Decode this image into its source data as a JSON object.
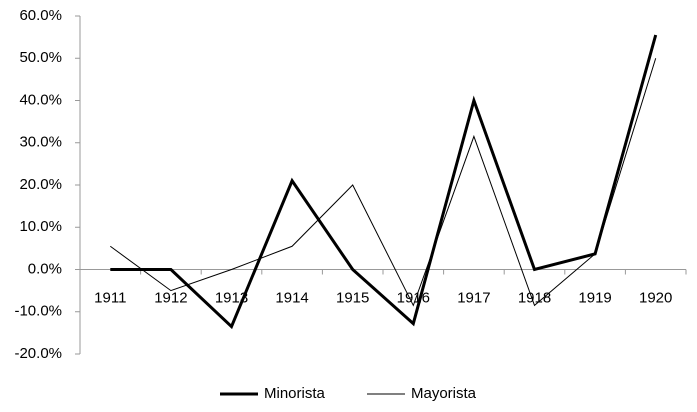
{
  "chart_data": {
    "type": "line",
    "categories": [
      "1911",
      "1912",
      "1913",
      "1914",
      "1915",
      "1916",
      "1917",
      "1918",
      "1919",
      "1920"
    ],
    "series": [
      {
        "name": "Minorista",
        "color": "#000000",
        "width": 3,
        "values": [
          0,
          0,
          -13.5,
          21,
          0,
          -12.8,
          40,
          0,
          3.7,
          55.5
        ]
      },
      {
        "name": "Mayorista",
        "color": "#000000",
        "width": 1,
        "values": [
          5.5,
          -5,
          0,
          5.5,
          20,
          -8.5,
          31.5,
          -8.5,
          3.7,
          50
        ]
      }
    ],
    "ylim": [
      -20,
      60
    ],
    "yticks": [
      {
        "value": -20,
        "label": "-20.0%"
      },
      {
        "value": -10,
        "label": "-10.0%"
      },
      {
        "value": 0,
        "label": "0.0%"
      },
      {
        "value": 10,
        "label": "10.0%"
      },
      {
        "value": 20,
        "label": "20.0%"
      },
      {
        "value": 30,
        "label": "30.0%"
      },
      {
        "value": 40,
        "label": "40.0%"
      },
      {
        "value": 50,
        "label": "50.0%"
      },
      {
        "value": 60,
        "label": "60.0%"
      }
    ],
    "legend": "bottom"
  }
}
